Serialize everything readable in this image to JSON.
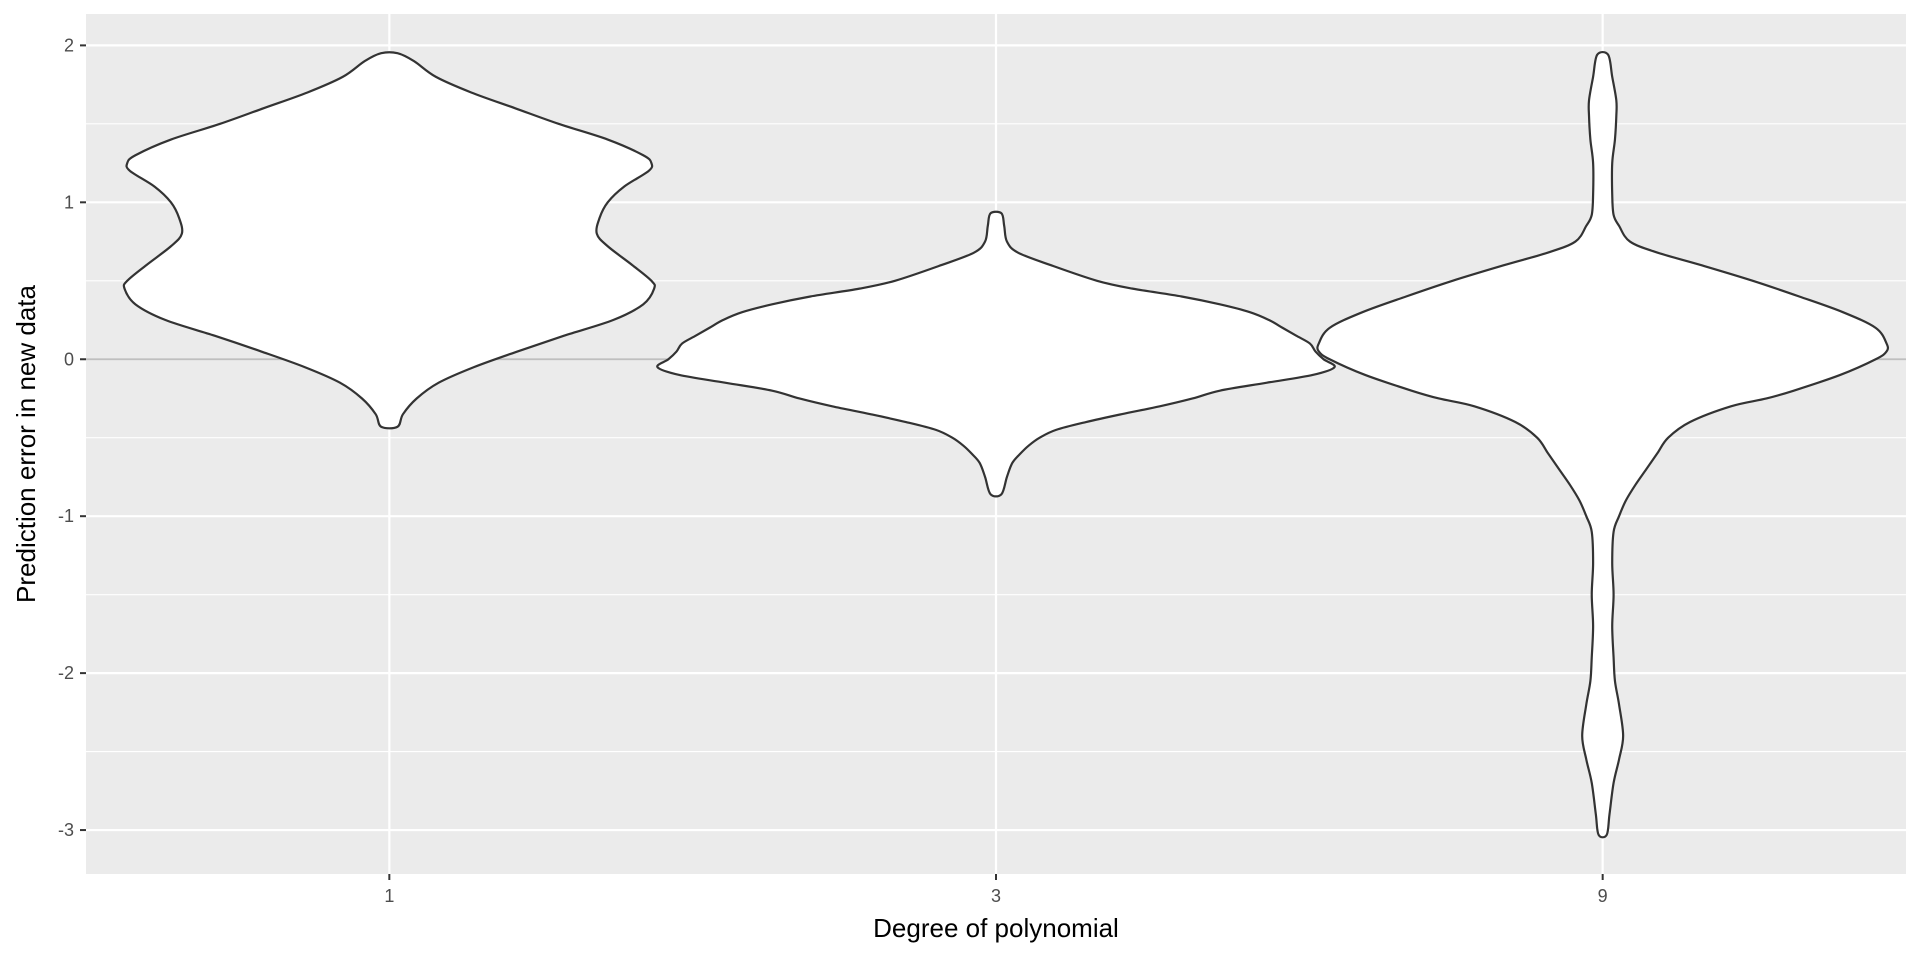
{
  "chart_data": {
    "type": "violin",
    "title": "",
    "xlabel": "Degree of polynomial",
    "ylabel": "Prediction error in new data",
    "categories": [
      "1",
      "3",
      "9"
    ],
    "ylim": [
      -3.28,
      2.2
    ],
    "yticks": [
      2,
      1,
      0,
      -1,
      -2,
      -3
    ],
    "ytick_labels": [
      "2",
      "1",
      "0",
      "-1",
      "-2",
      "-3"
    ],
    "reference_line_y": 0,
    "grid": true,
    "legend": "none",
    "colors": {
      "panel_background": "#ebebeb",
      "grid_major": "#ffffff",
      "reference_line": "#bfbfbf",
      "violin_fill": "#ffffff",
      "violin_outline": "#333333"
    },
    "series": [
      {
        "category": "1",
        "range": [
          -0.43,
          1.95
        ],
        "profile": [
          [
            1.95,
            0.03
          ],
          [
            1.9,
            0.09
          ],
          [
            1.8,
            0.17
          ],
          [
            1.7,
            0.3
          ],
          [
            1.6,
            0.46
          ],
          [
            1.5,
            0.62
          ],
          [
            1.4,
            0.8
          ],
          [
            1.3,
            0.93
          ],
          [
            1.25,
            0.96
          ],
          [
            1.2,
            0.95
          ],
          [
            1.1,
            0.86
          ],
          [
            1.0,
            0.8
          ],
          [
            0.9,
            0.77
          ],
          [
            0.8,
            0.76
          ],
          [
            0.72,
            0.8
          ],
          [
            0.6,
            0.89
          ],
          [
            0.5,
            0.96
          ],
          [
            0.45,
            0.97
          ],
          [
            0.35,
            0.93
          ],
          [
            0.25,
            0.82
          ],
          [
            0.15,
            0.64
          ],
          [
            0.05,
            0.47
          ],
          [
            -0.05,
            0.31
          ],
          [
            -0.15,
            0.18
          ],
          [
            -0.25,
            0.1
          ],
          [
            -0.35,
            0.05
          ],
          [
            -0.43,
            0.03
          ]
        ]
      },
      {
        "category": "3",
        "range": [
          -0.86,
          0.93
        ],
        "profile": [
          [
            0.93,
            0.02
          ],
          [
            0.85,
            0.03
          ],
          [
            0.75,
            0.04
          ],
          [
            0.68,
            0.08
          ],
          [
            0.6,
            0.2
          ],
          [
            0.5,
            0.37
          ],
          [
            0.45,
            0.5
          ],
          [
            0.4,
            0.68
          ],
          [
            0.35,
            0.82
          ],
          [
            0.3,
            0.93
          ],
          [
            0.25,
            1.0
          ],
          [
            0.2,
            1.05
          ],
          [
            0.15,
            1.1
          ],
          [
            0.1,
            1.15
          ],
          [
            0.05,
            1.17
          ],
          [
            0.0,
            1.2
          ],
          [
            -0.05,
            1.24
          ],
          [
            -0.1,
            1.16
          ],
          [
            -0.15,
            0.99
          ],
          [
            -0.2,
            0.82
          ],
          [
            -0.25,
            0.72
          ],
          [
            -0.3,
            0.6
          ],
          [
            -0.35,
            0.46
          ],
          [
            -0.4,
            0.33
          ],
          [
            -0.45,
            0.22
          ],
          [
            -0.5,
            0.16
          ],
          [
            -0.55,
            0.12
          ],
          [
            -0.6,
            0.09
          ],
          [
            -0.66,
            0.06
          ],
          [
            -0.75,
            0.04
          ],
          [
            -0.86,
            0.02
          ]
        ]
      },
      {
        "category": "9",
        "range": [
          -3.03,
          1.94
        ],
        "profile": [
          [
            1.94,
            0.02
          ],
          [
            1.8,
            0.035
          ],
          [
            1.65,
            0.05
          ],
          [
            1.55,
            0.05
          ],
          [
            1.4,
            0.045
          ],
          [
            1.25,
            0.035
          ],
          [
            1.05,
            0.035
          ],
          [
            0.92,
            0.04
          ],
          [
            0.85,
            0.06
          ],
          [
            0.75,
            0.1
          ],
          [
            0.68,
            0.2
          ],
          [
            0.6,
            0.36
          ],
          [
            0.5,
            0.55
          ],
          [
            0.4,
            0.72
          ],
          [
            0.3,
            0.88
          ],
          [
            0.2,
            1.0
          ],
          [
            0.1,
            1.04
          ],
          [
            0.05,
            1.04
          ],
          [
            0.0,
            1.0
          ],
          [
            -0.1,
            0.87
          ],
          [
            -0.2,
            0.7
          ],
          [
            -0.25,
            0.6
          ],
          [
            -0.3,
            0.47
          ],
          [
            -0.4,
            0.32
          ],
          [
            -0.5,
            0.24
          ],
          [
            -0.6,
            0.2
          ],
          [
            -0.7,
            0.16
          ],
          [
            -0.8,
            0.12
          ],
          [
            -0.9,
            0.085
          ],
          [
            -1.0,
            0.06
          ],
          [
            -1.1,
            0.04
          ],
          [
            -1.3,
            0.035
          ],
          [
            -1.5,
            0.04
          ],
          [
            -1.7,
            0.035
          ],
          [
            -1.9,
            0.04
          ],
          [
            -2.05,
            0.045
          ],
          [
            -2.2,
            0.06
          ],
          [
            -2.4,
            0.075
          ],
          [
            -2.55,
            0.06
          ],
          [
            -2.7,
            0.04
          ],
          [
            -2.9,
            0.025
          ],
          [
            -3.03,
            0.015
          ]
        ]
      }
    ]
  }
}
